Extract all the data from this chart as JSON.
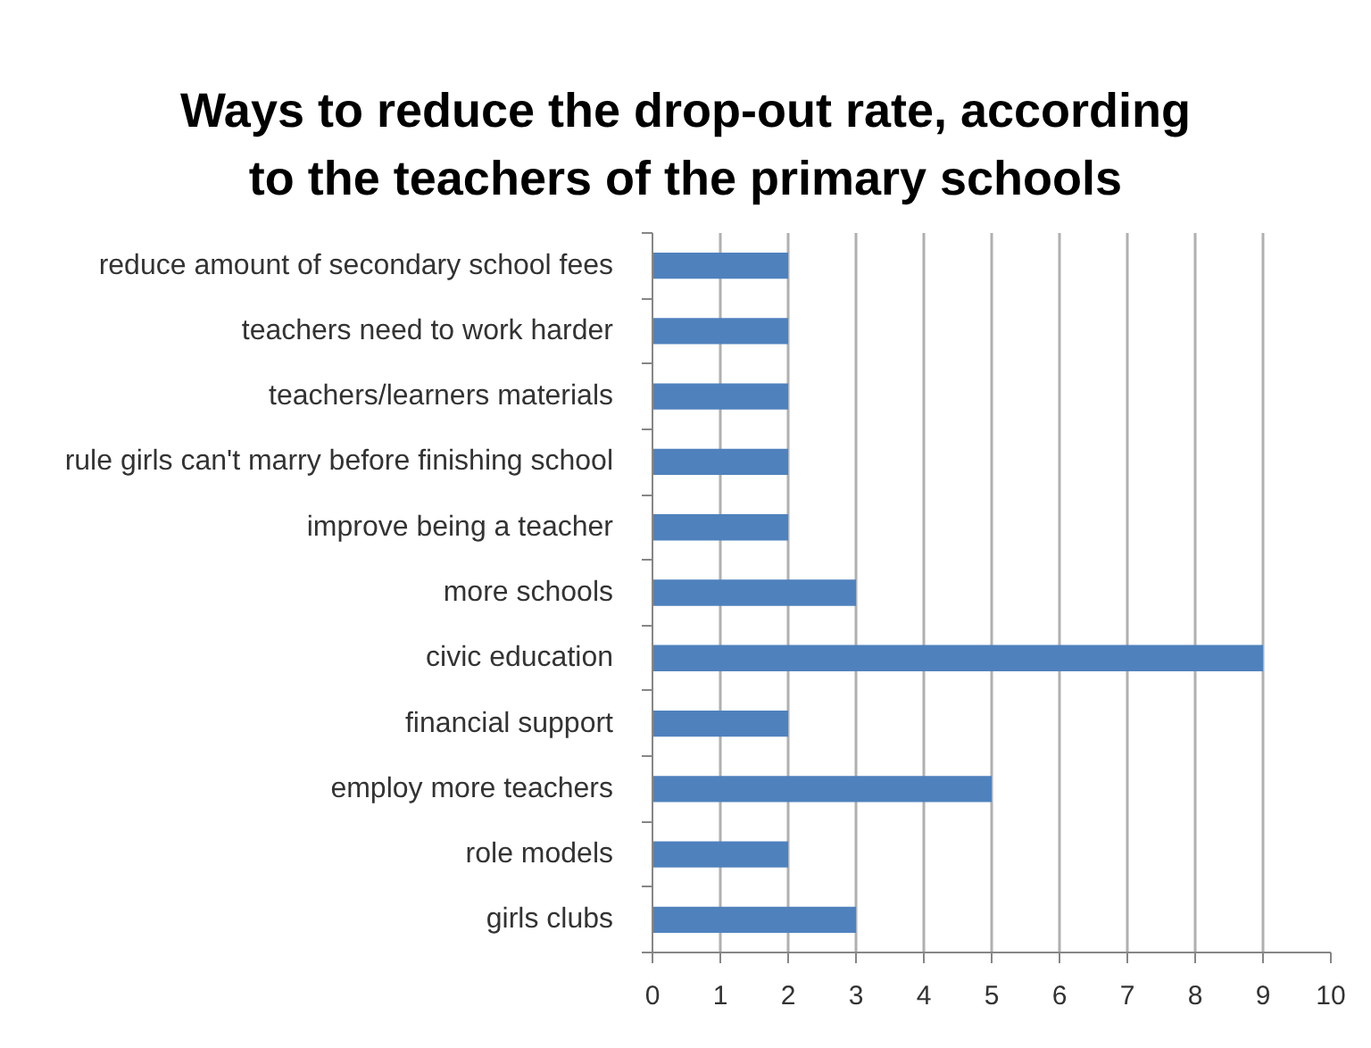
{
  "chart_data": {
    "type": "bar",
    "orientation": "horizontal",
    "title": "Ways to reduce the drop-out rate, according to the teachers of the primary schools",
    "categories": [
      "reduce amount of secondary school fees",
      "teachers need to work harder",
      "teachers/learners materials",
      "rule girls can't marry before finishing school",
      "improve being a teacher",
      "more schools",
      "civic education",
      "financial support",
      "employ more teachers",
      "role models",
      "girls clubs"
    ],
    "values": [
      2,
      2,
      2,
      2,
      2,
      3,
      9,
      2,
      5,
      2,
      3
    ],
    "color": "#4f81bd",
    "xlim": [
      0,
      10
    ],
    "xticks": [
      0,
      1,
      2,
      3,
      4,
      5,
      6,
      7,
      8,
      9,
      10
    ],
    "grid": "x"
  }
}
